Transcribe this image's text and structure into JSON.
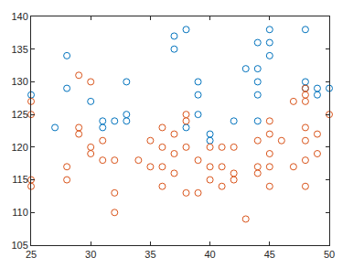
{
  "chart_data": {
    "type": "scatter",
    "marker": "circle-open",
    "grid": false,
    "xlim": [
      25,
      50
    ],
    "xticks": [
      25,
      30,
      35,
      40,
      45,
      50
    ],
    "ylim": [
      105,
      140
    ],
    "yticks": [
      105,
      110,
      115,
      120,
      125,
      130,
      135,
      140
    ],
    "series": [
      {
        "color": "#0072BD",
        "x": [
          25,
          27,
          28,
          28,
          30,
          31,
          31,
          32,
          33,
          33,
          33,
          37,
          37,
          38,
          38,
          39,
          39,
          39,
          40,
          40,
          42,
          43,
          44,
          44,
          44,
          44,
          44,
          45,
          45,
          45,
          48,
          48,
          48,
          49,
          49,
          50
        ],
        "values": [
          128,
          123,
          134,
          129,
          127,
          123,
          124,
          124,
          125,
          124,
          130,
          137,
          135,
          138,
          123,
          130,
          128,
          125,
          122,
          121,
          124,
          132,
          136,
          132,
          130,
          128,
          124,
          138,
          136,
          134,
          138,
          130,
          129,
          129,
          128,
          129
        ]
      },
      {
        "color": "#D95319",
        "x": [
          25,
          25,
          25,
          25,
          28,
          28,
          29,
          29,
          29,
          30,
          30,
          30,
          31,
          31,
          32,
          32,
          32,
          34,
          35,
          35,
          36,
          36,
          36,
          36,
          37,
          37,
          37,
          38,
          38,
          38,
          38,
          39,
          39,
          40,
          40,
          40,
          41,
          41,
          41,
          42,
          42,
          42,
          43,
          44,
          44,
          44,
          45,
          45,
          45,
          45,
          45,
          46,
          47,
          47,
          48,
          48,
          48,
          48,
          48,
          48,
          48,
          49,
          49,
          50
        ],
        "values": [
          127,
          125,
          115,
          114,
          117,
          115,
          131,
          123,
          122,
          130,
          120,
          119,
          121,
          118,
          113,
          110,
          118,
          118,
          121,
          117,
          123,
          120,
          117,
          114,
          122,
          119,
          116,
          125,
          124,
          120,
          113,
          118,
          113,
          120,
          117,
          115,
          114,
          117,
          120,
          120,
          116,
          115,
          109,
          121,
          117,
          116,
          124,
          122,
          119,
          117,
          114,
          121,
          127,
          117,
          129,
          128,
          127,
          123,
          121,
          118,
          114,
          122,
          119,
          125
        ]
      }
    ]
  }
}
